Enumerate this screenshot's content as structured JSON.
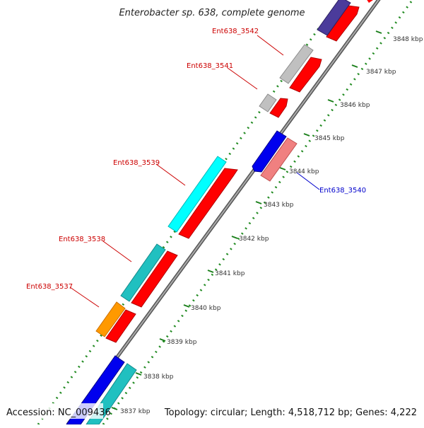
{
  "title": "Enterobacter sp. 638, complete genome",
  "footer": {
    "accession": "Accession: NC_009436",
    "summary": "Topology: circular; Length: 4,518,712 bp; Genes: 4,222"
  },
  "scale_labels": [
    "3837 kbp",
    "3838 kbp",
    "3839 kbp",
    "3840 kbp",
    "3841 kbp",
    "3842 kbp",
    "3843 kbp",
    "3844 kbp",
    "3845 kbp",
    "3846 kbp",
    "3847 kbp",
    "3848 kbp"
  ],
  "gene_labels": [
    {
      "text": "Ent638_3542",
      "strand": "forward"
    },
    {
      "text": "Ent638_3541",
      "strand": "forward"
    },
    {
      "text": "Ent638_3539",
      "strand": "forward"
    },
    {
      "text": "Ent638_3538",
      "strand": "forward"
    },
    {
      "text": "Ent638_3537",
      "strand": "forward"
    },
    {
      "text": "Ent638_3540",
      "strand": "reverse"
    }
  ],
  "colors": {
    "forward_label": "#cc0000",
    "reverse_label": "#0000cc",
    "cds": "#ff0000",
    "backbone": "#888888",
    "gc_dots": "#228b22",
    "cyan": "#00ffff",
    "teal": "#20c0c0",
    "orange": "#ff9900",
    "gray": "#c0c0c0",
    "blue": "#0000ee",
    "pink": "#f08080",
    "navy": "#4b3b9b"
  }
}
